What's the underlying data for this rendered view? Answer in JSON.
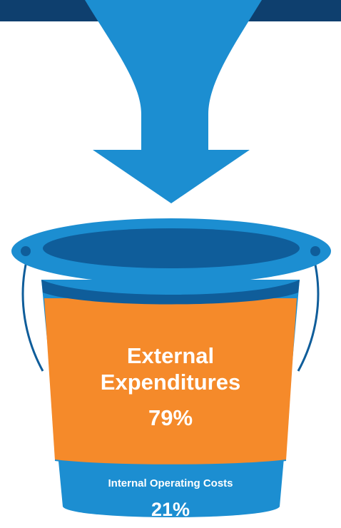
{
  "diagram": {
    "colors": {
      "top_band": "#0e3f6e",
      "arrow": "#1c8ed1",
      "bucket_blue": "#1c8ed1",
      "bucket_inner": "#0f5d9a",
      "bucket_label_orange": "#f58a2a",
      "text": "#ffffff"
    },
    "icons": [
      "down-arrow-funnel-icon",
      "bucket-icon"
    ],
    "external": {
      "line1": "External",
      "line2": "Expenditures",
      "percent": "79%",
      "share": 0.79
    },
    "internal": {
      "label": "Internal Operating Costs",
      "percent": "21%",
      "share": 0.21
    }
  }
}
